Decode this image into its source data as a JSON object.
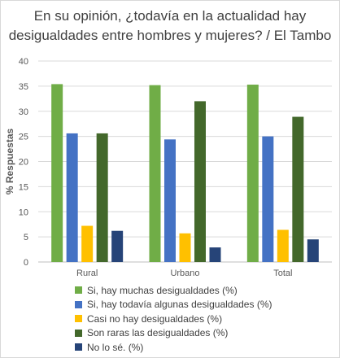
{
  "chart_data": {
    "type": "bar",
    "title_line1": "En su opinión, ¿todavía en la actualidad hay",
    "title_line2": "desigualdades entre hombres y mujeres? / El Tambo",
    "ylabel": "% Respuestas",
    "xlabel": "",
    "ylim": [
      0,
      40
    ],
    "yticks": [
      "0",
      "5",
      "10",
      "15",
      "20",
      "25",
      "30",
      "35",
      "40"
    ],
    "grid": true,
    "legend_position": "bottom",
    "categories": [
      "Rural",
      "Urbano",
      "Total"
    ],
    "series": [
      {
        "name": "Si, hay muchas desigualdades (%)",
        "color": "#70ad47",
        "values": [
          35.4,
          35.2,
          35.3
        ]
      },
      {
        "name": "Si, hay todavía algunas desigualdades (%)",
        "color": "#4472c4",
        "values": [
          25.6,
          24.4,
          25.0
        ]
      },
      {
        "name": "Casi no hay desigualdades (%)",
        "color": "#ffc000",
        "values": [
          7.2,
          5.7,
          6.4
        ]
      },
      {
        "name": "Son raras las desigualdades (%)",
        "color": "#43682b",
        "values": [
          25.6,
          32.0,
          28.9
        ]
      },
      {
        "name": "No lo sé. (%)",
        "color": "#264478",
        "values": [
          6.2,
          2.9,
          4.5
        ]
      }
    ]
  }
}
